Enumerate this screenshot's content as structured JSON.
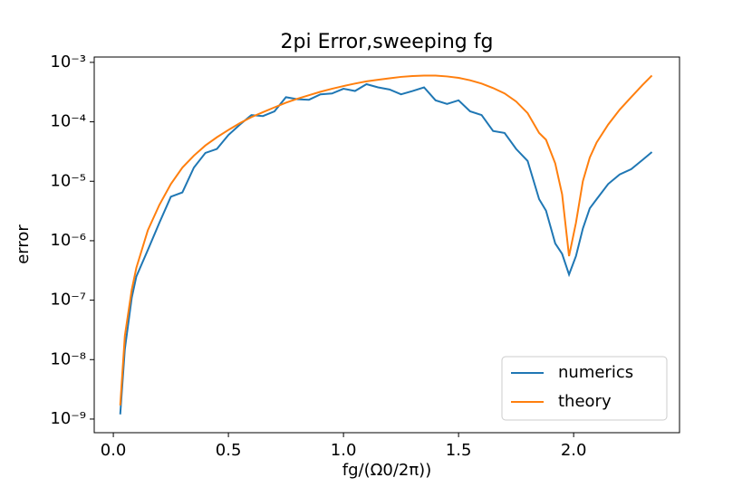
{
  "chart_data": {
    "type": "line",
    "title": "2pi Error,sweeping fg",
    "x_label": "fg/(Ω0/2π))",
    "y_label": "error",
    "x": [
      0.03,
      0.05,
      0.08,
      0.1,
      0.15,
      0.2,
      0.25,
      0.3,
      0.35,
      0.4,
      0.45,
      0.5,
      0.55,
      0.6,
      0.65,
      0.7,
      0.75,
      0.8,
      0.85,
      0.9,
      0.95,
      1.0,
      1.05,
      1.1,
      1.15,
      1.2,
      1.25,
      1.3,
      1.35,
      1.4,
      1.45,
      1.5,
      1.55,
      1.6,
      1.65,
      1.7,
      1.75,
      1.8,
      1.85,
      1.88,
      1.92,
      1.95,
      1.98,
      2.01,
      2.04,
      2.07,
      2.1,
      2.15,
      2.2,
      2.25,
      2.3,
      2.34
    ],
    "series": [
      {
        "name": "numerics",
        "color": "#1f77b4",
        "values": [
          1.2e-09,
          1.5e-08,
          1.1e-07,
          2.5e-07,
          7e-07,
          2e-06,
          5.5e-06,
          6.5e-06,
          1.7e-05,
          3e-05,
          3.5e-05,
          6e-05,
          9e-05,
          0.00013,
          0.000125,
          0.00015,
          0.00026,
          0.00024,
          0.000235,
          0.00029,
          0.0003,
          0.00036,
          0.00033,
          0.00043,
          0.00038,
          0.00035,
          0.00029,
          0.00033,
          0.00038,
          0.00023,
          0.0002,
          0.00023,
          0.00015,
          0.00013,
          7e-05,
          6.5e-05,
          3.5e-05,
          2.2e-05,
          5e-06,
          3.2e-06,
          9e-07,
          6e-07,
          2.7e-07,
          5.5e-07,
          1.6e-06,
          3.5e-06,
          5e-06,
          9e-06,
          1.3e-05,
          1.6e-05,
          2.3e-05,
          3.1e-05
        ]
      },
      {
        "name": "theory",
        "color": "#ff7f0e",
        "values": [
          1.7e-09,
          2.5e-08,
          1.5e-07,
          3.5e-07,
          1.5e-06,
          4e-06,
          9e-06,
          1.7e-05,
          2.7e-05,
          4e-05,
          5.5e-05,
          7.3e-05,
          9.5e-05,
          0.00012,
          0.000145,
          0.000175,
          0.00021,
          0.000245,
          0.00028,
          0.00032,
          0.00036,
          0.0004,
          0.00044,
          0.00048,
          0.00051,
          0.00054,
          0.00057,
          0.00059,
          0.0006,
          0.0006,
          0.00058,
          0.00055,
          0.0005,
          0.00044,
          0.00037,
          0.0003,
          0.00022,
          0.00014,
          6.5e-05,
          5e-05,
          2e-05,
          6e-06,
          5.5e-07,
          2e-06,
          1e-05,
          2.5e-05,
          4.5e-05,
          9e-05,
          0.00016,
          0.00026,
          0.00042,
          0.0006
        ]
      }
    ],
    "xlim": [
      -0.083,
      2.46
    ],
    "ylim": [
      5.9e-10,
      0.00123
    ],
    "log_y": true,
    "xticks": [
      {
        "value": 0,
        "label": "0.0"
      },
      0.5,
      {
        "value": 1,
        "label": "1.0"
      },
      1.5,
      {
        "value": 2,
        "label": "2.0"
      }
    ],
    "yticks": [
      {
        "value": 1e-09,
        "label": "10⁻⁹"
      },
      {
        "value": 1e-08,
        "label": "10⁻⁸"
      },
      {
        "value": 1e-07,
        "label": "10⁻⁷"
      },
      {
        "value": 1e-06,
        "label": "10⁻⁶"
      },
      {
        "value": 1e-05,
        "label": "10⁻⁵"
      },
      {
        "value": 0.0001,
        "label": "10⁻⁴"
      },
      {
        "value": 0.001,
        "label": "10⁻³"
      }
    ],
    "legend": "lower right"
  }
}
